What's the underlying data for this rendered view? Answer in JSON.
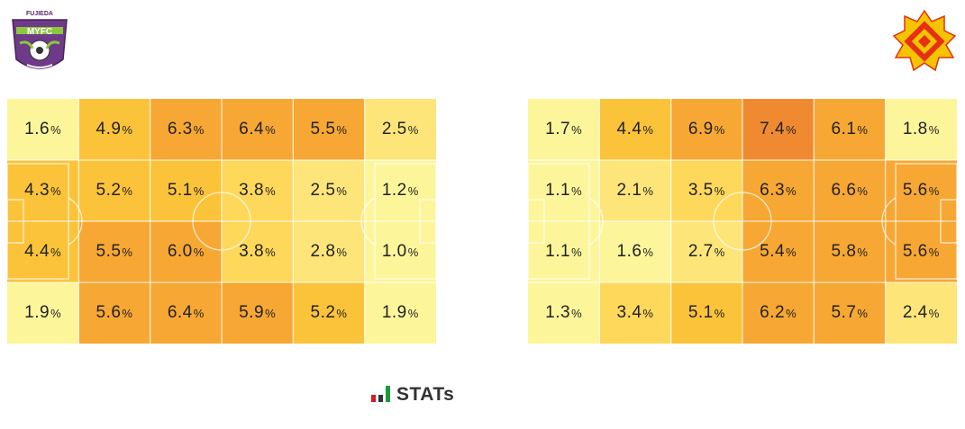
{
  "branding": {
    "left_crest_text": "FUJIEDA MYFC",
    "stats_logo_text": "STATs"
  },
  "colors": {
    "scale": [
      "#fdf59a",
      "#fde57a",
      "#fdd85a",
      "#fbc33a",
      "#f7a733",
      "#f08a30"
    ],
    "pitch_lines": "#ffffff",
    "label_text": "#222222"
  },
  "chart_data": [
    {
      "type": "heatmap",
      "team": "left",
      "rows": 4,
      "cols": 6,
      "unit": "%",
      "values": [
        [
          1.6,
          4.9,
          6.3,
          6.4,
          5.5,
          2.5
        ],
        [
          4.3,
          5.2,
          5.1,
          3.8,
          2.5,
          1.2
        ],
        [
          4.4,
          5.5,
          6.0,
          3.8,
          2.8,
          1.0
        ],
        [
          1.9,
          5.6,
          6.4,
          5.9,
          5.2,
          1.9
        ]
      ]
    },
    {
      "type": "heatmap",
      "team": "right",
      "rows": 4,
      "cols": 6,
      "unit": "%",
      "values": [
        [
          1.7,
          4.4,
          6.9,
          7.4,
          6.1,
          1.8
        ],
        [
          1.1,
          2.1,
          3.5,
          6.3,
          6.6,
          5.6
        ],
        [
          1.1,
          1.6,
          2.7,
          5.4,
          5.8,
          5.6
        ],
        [
          1.3,
          3.4,
          5.1,
          6.2,
          5.7,
          2.4
        ]
      ]
    }
  ]
}
